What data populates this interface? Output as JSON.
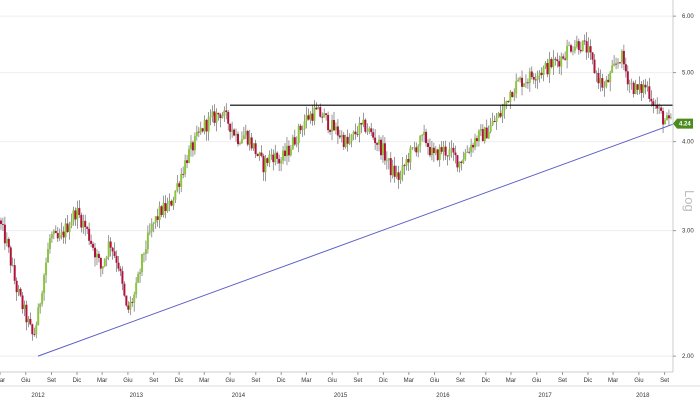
{
  "chart_data": {
    "type": "candlestick",
    "y_scale": "log",
    "y_scale_label": "Log",
    "ylim": [
      1.9,
      6.2
    ],
    "y_ticks": [
      {
        "value": 2.0,
        "label": "2.00"
      },
      {
        "value": 3.0,
        "label": "3.00"
      },
      {
        "value": 4.0,
        "label": "4.00"
      },
      {
        "value": 5.0,
        "label": "5.00"
      },
      {
        "value": 6.0,
        "label": "6.00"
      }
    ],
    "x_range": [
      "2012-03-01",
      "2018-10-01"
    ],
    "x_month_ticks": [
      {
        "date": "2012-03-01",
        "label": "Mar"
      },
      {
        "date": "2012-06-01",
        "label": "Giu"
      },
      {
        "date": "2012-09-01",
        "label": "Set"
      },
      {
        "date": "2012-12-01",
        "label": "Dic"
      },
      {
        "date": "2013-03-01",
        "label": "Mar"
      },
      {
        "date": "2013-06-01",
        "label": "Giu"
      },
      {
        "date": "2013-09-01",
        "label": "Set"
      },
      {
        "date": "2013-12-01",
        "label": "Dic"
      },
      {
        "date": "2014-03-01",
        "label": "Mar"
      },
      {
        "date": "2014-06-01",
        "label": "Giu"
      },
      {
        "date": "2014-09-01",
        "label": "Set"
      },
      {
        "date": "2014-12-01",
        "label": "Dic"
      },
      {
        "date": "2015-03-01",
        "label": "Mar"
      },
      {
        "date": "2015-06-01",
        "label": "Giu"
      },
      {
        "date": "2015-09-01",
        "label": "Set"
      },
      {
        "date": "2015-12-01",
        "label": "Dic"
      },
      {
        "date": "2016-03-01",
        "label": "Mar"
      },
      {
        "date": "2016-06-01",
        "label": "Giu"
      },
      {
        "date": "2016-09-01",
        "label": "Set"
      },
      {
        "date": "2016-12-01",
        "label": "Dic"
      },
      {
        "date": "2017-03-01",
        "label": "Mar"
      },
      {
        "date": "2017-06-01",
        "label": "Giu"
      },
      {
        "date": "2017-09-01",
        "label": "Set"
      },
      {
        "date": "2017-12-01",
        "label": "Dic"
      },
      {
        "date": "2018-03-01",
        "label": "Mar"
      },
      {
        "date": "2018-06-01",
        "label": "Giu"
      },
      {
        "date": "2018-09-01",
        "label": "Set"
      }
    ],
    "x_year_labels": [
      {
        "year": "2012",
        "date": "2012-07-15"
      },
      {
        "year": "2013",
        "date": "2013-07-01"
      },
      {
        "year": "2014",
        "date": "2014-07-01"
      },
      {
        "year": "2015",
        "date": "2015-07-01"
      },
      {
        "year": "2016",
        "date": "2016-07-01"
      },
      {
        "year": "2017",
        "date": "2017-07-01"
      },
      {
        "year": "2018",
        "date": "2018-06-15"
      }
    ],
    "price_path": [
      [
        "2012-03-01",
        3.1
      ],
      [
        "2012-04-01",
        2.85
      ],
      [
        "2012-05-01",
        2.5
      ],
      [
        "2012-06-01",
        2.3
      ],
      [
        "2012-07-01",
        2.12
      ],
      [
        "2012-07-20",
        2.3
      ],
      [
        "2012-08-01",
        2.5
      ],
      [
        "2012-09-01",
        2.95
      ],
      [
        "2012-10-01",
        2.9
      ],
      [
        "2012-11-01",
        3.05
      ],
      [
        "2012-12-01",
        3.2
      ],
      [
        "2013-01-01",
        3.05
      ],
      [
        "2013-02-01",
        2.85
      ],
      [
        "2013-03-01",
        2.65
      ],
      [
        "2013-04-01",
        2.9
      ],
      [
        "2013-05-01",
        2.7
      ],
      [
        "2013-06-01",
        2.3
      ],
      [
        "2013-07-01",
        2.45
      ],
      [
        "2013-08-01",
        2.8
      ],
      [
        "2013-09-01",
        3.05
      ],
      [
        "2013-10-01",
        3.2
      ],
      [
        "2013-11-01",
        3.25
      ],
      [
        "2013-12-01",
        3.5
      ],
      [
        "2014-01-01",
        3.8
      ],
      [
        "2014-02-01",
        4.0
      ],
      [
        "2014-03-01",
        4.2
      ],
      [
        "2014-04-01",
        4.3
      ],
      [
        "2014-05-01",
        4.4
      ],
      [
        "2014-06-01",
        4.25
      ],
      [
        "2014-07-01",
        4.05
      ],
      [
        "2014-08-01",
        4.1
      ],
      [
        "2014-09-01",
        3.9
      ],
      [
        "2014-10-01",
        3.7
      ],
      [
        "2014-11-01",
        3.85
      ],
      [
        "2014-12-01",
        3.75
      ],
      [
        "2015-01-01",
        3.9
      ],
      [
        "2015-02-01",
        4.1
      ],
      [
        "2015-03-01",
        4.3
      ],
      [
        "2015-04-01",
        4.4
      ],
      [
        "2015-05-01",
        4.35
      ],
      [
        "2015-06-01",
        4.2
      ],
      [
        "2015-07-01",
        4.1
      ],
      [
        "2015-08-01",
        3.95
      ],
      [
        "2015-09-01",
        4.15
      ],
      [
        "2015-10-01",
        4.2
      ],
      [
        "2015-11-01",
        4.05
      ],
      [
        "2015-12-01",
        3.9
      ],
      [
        "2016-01-01",
        3.65
      ],
      [
        "2016-02-01",
        3.55
      ],
      [
        "2016-03-01",
        3.8
      ],
      [
        "2016-04-01",
        3.95
      ],
      [
        "2016-05-01",
        4.05
      ],
      [
        "2016-06-01",
        3.8
      ],
      [
        "2016-07-01",
        3.9
      ],
      [
        "2016-08-01",
        3.85
      ],
      [
        "2016-09-01",
        3.75
      ],
      [
        "2016-10-01",
        3.9
      ],
      [
        "2016-11-01",
        4.05
      ],
      [
        "2016-12-01",
        4.1
      ],
      [
        "2017-01-01",
        4.25
      ],
      [
        "2017-02-01",
        4.4
      ],
      [
        "2017-03-01",
        4.7
      ],
      [
        "2017-04-01",
        4.85
      ],
      [
        "2017-05-01",
        4.9
      ],
      [
        "2017-06-01",
        5.0
      ],
      [
        "2017-07-01",
        5.05
      ],
      [
        "2017-08-01",
        5.15
      ],
      [
        "2017-09-01",
        5.25
      ],
      [
        "2017-10-01",
        5.45
      ],
      [
        "2017-11-01",
        5.5
      ],
      [
        "2017-12-01",
        5.4
      ],
      [
        "2018-01-01",
        5.0
      ],
      [
        "2018-02-01",
        4.75
      ],
      [
        "2018-03-01",
        5.0
      ],
      [
        "2018-04-01",
        5.3
      ],
      [
        "2018-05-01",
        4.85
      ],
      [
        "2018-06-01",
        4.7
      ],
      [
        "2018-07-01",
        4.8
      ],
      [
        "2018-08-01",
        4.5
      ],
      [
        "2018-09-01",
        4.3
      ],
      [
        "2018-09-20",
        4.24
      ]
    ],
    "colors": {
      "up": "#8cc63e",
      "down": "#b0123c",
      "wick": "#555555",
      "trendline": "#5b5fc7",
      "resistance": "#000000",
      "last_value_bg": "#4c8c1f",
      "grid": "#eeeeee"
    },
    "resistance_line": {
      "value": 4.5,
      "from": "2014-06-01",
      "to": "2018-09-30"
    },
    "trend_line": {
      "from": [
        "2012-07-15",
        2.0
      ],
      "to": [
        "2018-09-30",
        4.23
      ]
    },
    "last_value": {
      "value": 4.24,
      "label": "4.24"
    }
  }
}
